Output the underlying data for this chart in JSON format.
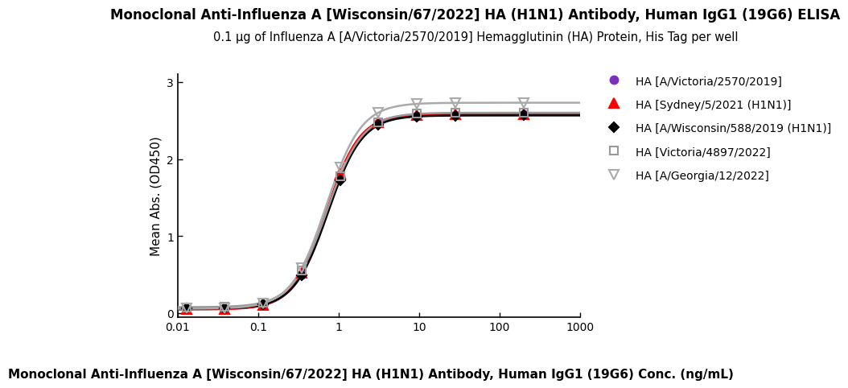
{
  "title": "Monoclonal Anti-Influenza A [Wisconsin/67/2022] HA (H1N1) Antibody, Human IgG1 (19G6) ELISA",
  "subtitle": "0.1 μg of Influenza A [A/Victoria/2570/2019] Hemagglutinin (HA) Protein, His Tag per well",
  "xlabel": "Monoclonal Anti-Influenza A [Wisconsin/67/2022] HA (H1N1) Antibody, Human IgG1 (19G6) Conc. (ng/mL)",
  "ylabel": "Mean Abs. (OD450)",
  "ylim": [
    -0.05,
    3.1
  ],
  "yticks": [
    0,
    1,
    2,
    3
  ],
  "xtick_labels": [
    "0.01",
    "0.1",
    "1",
    "10",
    "100",
    "1000"
  ],
  "xtick_values": [
    0.01,
    0.1,
    1,
    10,
    100,
    1000
  ],
  "series": [
    {
      "label": "HA [A/Victoria/2570/2019]",
      "color": "#7B2FBE",
      "marker": "o",
      "markersize": 7,
      "linewidth": 1.8,
      "markerfacecolor": "#7B2FBE",
      "markeredgecolor": "#7B2FBE",
      "bottom": 0.055,
      "top": 2.575,
      "ec50": 0.72,
      "hill": 2.1
    },
    {
      "label": "HA [Sydney/5/2021 (H1N1)]",
      "color": "#FF0000",
      "marker": "^",
      "markersize": 8,
      "linewidth": 1.8,
      "markerfacecolor": "#FF0000",
      "markeredgecolor": "#FF0000",
      "bottom": 0.05,
      "top": 2.585,
      "ec50": 0.7,
      "hill": 2.1
    },
    {
      "label": "HA [A/Wisconsin/588/2019 (H1N1)]",
      "color": "#000000",
      "marker": "D",
      "markersize": 6,
      "linewidth": 1.8,
      "markerfacecolor": "#000000",
      "markeredgecolor": "#000000",
      "bottom": 0.06,
      "top": 2.565,
      "ec50": 0.74,
      "hill": 2.05
    },
    {
      "label": "HA [Victoria/4897/2022]",
      "color": "#999999",
      "marker": "s",
      "markersize": 7,
      "linewidth": 1.8,
      "markerfacecolor": "none",
      "markeredgecolor": "#999999",
      "bottom": 0.08,
      "top": 2.6,
      "ec50": 0.72,
      "hill": 2.0
    },
    {
      "label": "HA [A/Georgia/12/2022]",
      "color": "#AAAAAA",
      "marker": "v",
      "markersize": 8,
      "linewidth": 1.8,
      "markerfacecolor": "none",
      "markeredgecolor": "#AAAAAA",
      "bottom": 0.06,
      "top": 2.73,
      "ec50": 0.7,
      "hill": 2.0
    }
  ],
  "data_points_x": [
    0.0128,
    0.0384,
    0.1152,
    0.3457,
    1.037,
    3.111,
    9.333,
    28.0,
    200.0
  ],
  "bg_color": "#FFFFFF",
  "title_fontsize": 12,
  "subtitle_fontsize": 10.5,
  "axis_label_fontsize": 11,
  "tick_fontsize": 10,
  "legend_fontsize": 10
}
